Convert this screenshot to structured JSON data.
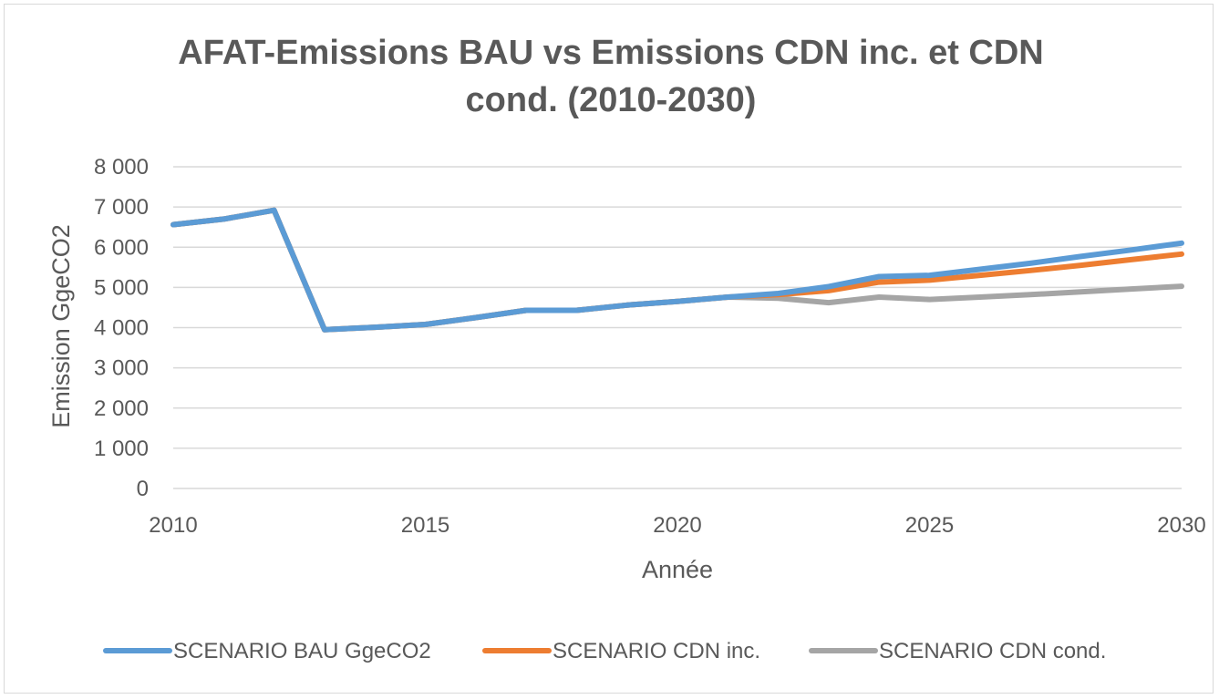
{
  "chart_data": {
    "type": "line",
    "title": "AFAT-Emissions BAU vs Emissions CDN inc. et CDN cond. (2010-2030)",
    "xlabel": "Année",
    "ylabel": "Emission GgeCO2",
    "xlim": [
      2010,
      2030
    ],
    "ylim": [
      0,
      8000
    ],
    "x_ticks": [
      2010,
      2015,
      2020,
      2025,
      2030
    ],
    "x_tick_labels": [
      "2010",
      "2015",
      "2020",
      "2025",
      "2030"
    ],
    "y_ticks": [
      0,
      1000,
      2000,
      3000,
      4000,
      5000,
      6000,
      7000,
      8000
    ],
    "y_tick_labels": [
      "0",
      "1 000",
      "2 000",
      "3 000",
      "4 000",
      "5 000",
      "6 000",
      "7 000",
      "8 000"
    ],
    "grid": true,
    "legend_position": "bottom",
    "x": [
      2010,
      2011,
      2012,
      2013,
      2014,
      2015,
      2016,
      2017,
      2018,
      2019,
      2020,
      2021,
      2022,
      2023,
      2024,
      2025,
      2026,
      2027,
      2028,
      2029,
      2030
    ],
    "series": [
      {
        "name": "SCENARIO BAU GgeCO2",
        "color": "#5b9bd5",
        "values": [
          6560,
          6700,
          6920,
          3950,
          4010,
          4080,
          4250,
          4430,
          4430,
          4560,
          4650,
          4760,
          4850,
          5020,
          5270,
          5300,
          5450,
          5600,
          5770,
          5930,
          6100
        ]
      },
      {
        "name": "SCENARIO CDN inc.",
        "color": "#ed7d31",
        "values": [
          6560,
          6700,
          6920,
          3950,
          4010,
          4080,
          4250,
          4430,
          4430,
          4560,
          4650,
          4760,
          4820,
          4920,
          5130,
          5180,
          5300,
          5420,
          5550,
          5690,
          5830
        ]
      },
      {
        "name": "SCENARIO CDN cond.",
        "color": "#a5a5a5",
        "values": [
          6560,
          6700,
          6920,
          3950,
          4010,
          4080,
          4250,
          4430,
          4430,
          4560,
          4650,
          4760,
          4730,
          4620,
          4760,
          4700,
          4760,
          4820,
          4890,
          4960,
          5030
        ]
      }
    ]
  }
}
